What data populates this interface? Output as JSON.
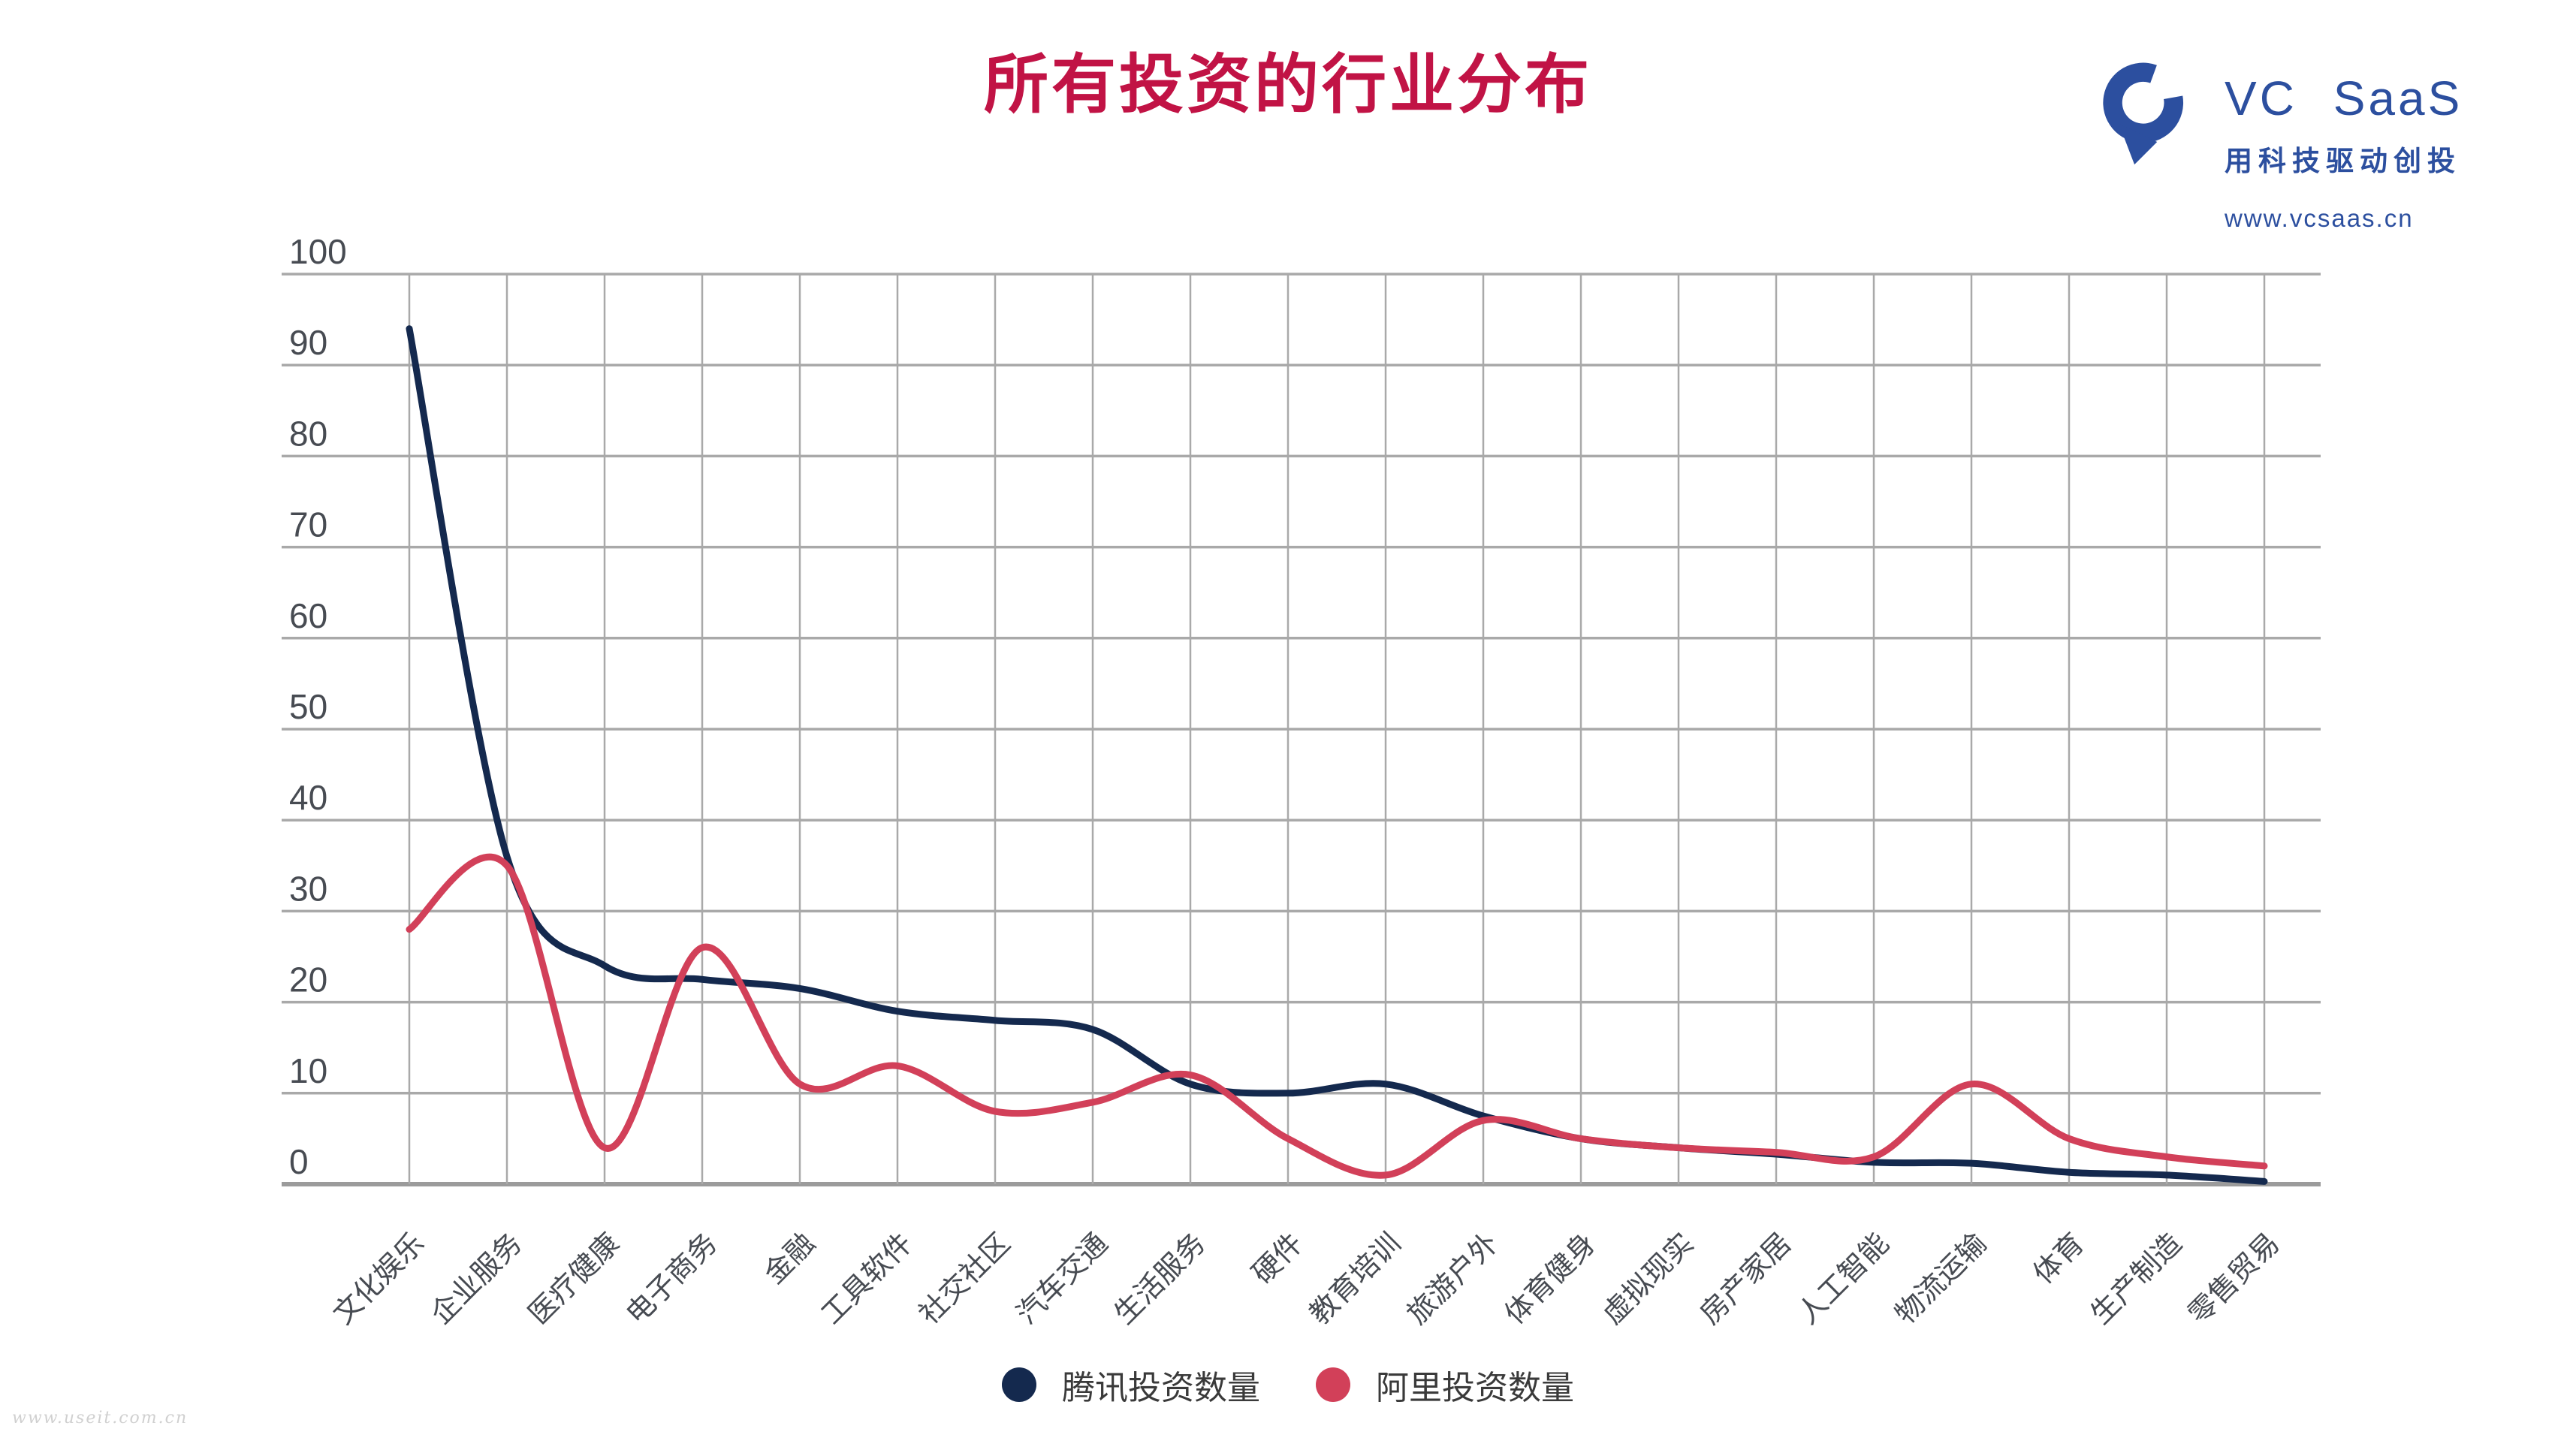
{
  "header": {
    "title": "所有投资的行业分布"
  },
  "brand": {
    "name": "VC SaaS",
    "slogan": "用科技驱动创投",
    "url": "www.vcsaas.cn",
    "logo_color": "#2c4f9f",
    "logo_icon": "vcsaas-pin-mark"
  },
  "watermark": "www.useit.com.cn",
  "chart_data": {
    "type": "line",
    "title": "所有投资的行业分布",
    "categories": [
      "文化娱乐",
      "企业服务",
      "医疗健康",
      "电子商务",
      "金融",
      "工具软件",
      "社交社区",
      "汽车交通",
      "生活服务",
      "硬件",
      "教育培训",
      "旅游户外",
      "体育健身",
      "虚拟现实",
      "房产家居",
      "人工智能",
      "物流运输",
      "体育",
      "生产制造",
      "零售贸易"
    ],
    "series": [
      {
        "name": "腾讯投资数量",
        "color": "#14294e",
        "values": [
          94,
          36,
          24,
          22.5,
          21.5,
          19,
          18,
          17,
          11,
          10,
          11,
          7.5,
          5,
          4,
          3.3,
          2.4,
          2.3,
          1.3,
          1,
          0.3
        ]
      },
      {
        "name": "阿里投资数量",
        "color": "#d24059",
        "values": [
          28,
          35,
          4,
          26,
          11,
          13,
          8,
          9,
          12,
          5,
          1,
          7,
          5,
          4,
          3.5,
          3,
          11,
          5,
          3,
          2
        ]
      }
    ],
    "ylim": [
      0,
      100
    ],
    "yticks": [
      0,
      10,
      20,
      30,
      40,
      50,
      60,
      70,
      80,
      90,
      100
    ],
    "xlabel": "",
    "ylabel": "",
    "grid": true,
    "x_label_rotation": -45,
    "legend_position": "bottom",
    "gridline_color": "#a9a9a9",
    "axis_color": "#9b9b9b",
    "tick_label_color": "#474b52"
  }
}
